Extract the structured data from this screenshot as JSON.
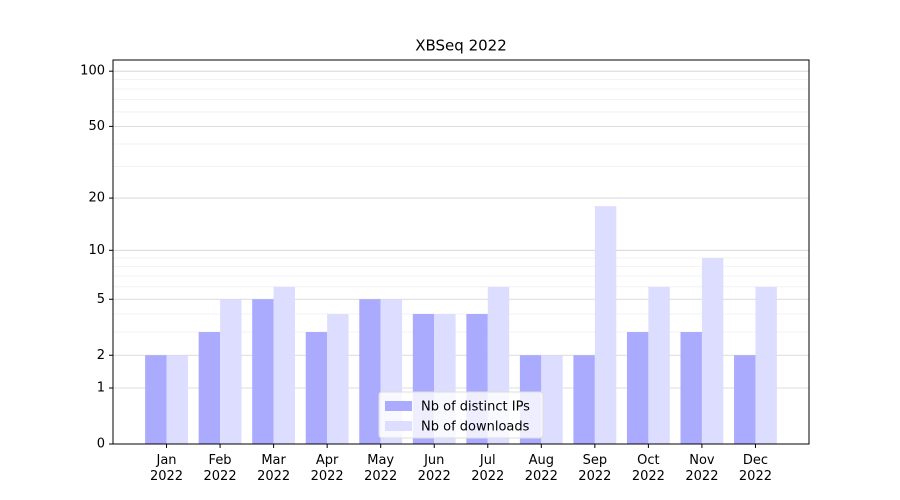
{
  "chart_data": {
    "type": "bar",
    "title": "XBSeq 2022",
    "categories": [
      "Jan\n2022",
      "Feb\n2022",
      "Mar\n2022",
      "Apr\n2022",
      "May\n2022",
      "Jun\n2022",
      "Jul\n2022",
      "Aug\n2022",
      "Sep\n2022",
      "Oct\n2022",
      "Nov\n2022",
      "Dec\n2022"
    ],
    "series": [
      {
        "name": "Nb of distinct IPs",
        "color": "#aaaaff",
        "values": [
          2,
          3,
          5,
          3,
          5,
          4,
          4,
          2,
          2,
          3,
          3,
          2
        ]
      },
      {
        "name": "Nb of downloads",
        "color": "#ddddff",
        "values": [
          2,
          5,
          6,
          4,
          5,
          4,
          6,
          2,
          18,
          6,
          9,
          6
        ]
      }
    ],
    "yscale": "log1p",
    "ylim": [
      0,
      115
    ],
    "yticks": [
      0,
      1,
      2,
      5,
      10,
      20,
      50,
      100
    ],
    "yminorticks": [
      3,
      4,
      6,
      7,
      8,
      9,
      30,
      40,
      60,
      70,
      80,
      90
    ],
    "grid": true,
    "legend": "lower center"
  }
}
